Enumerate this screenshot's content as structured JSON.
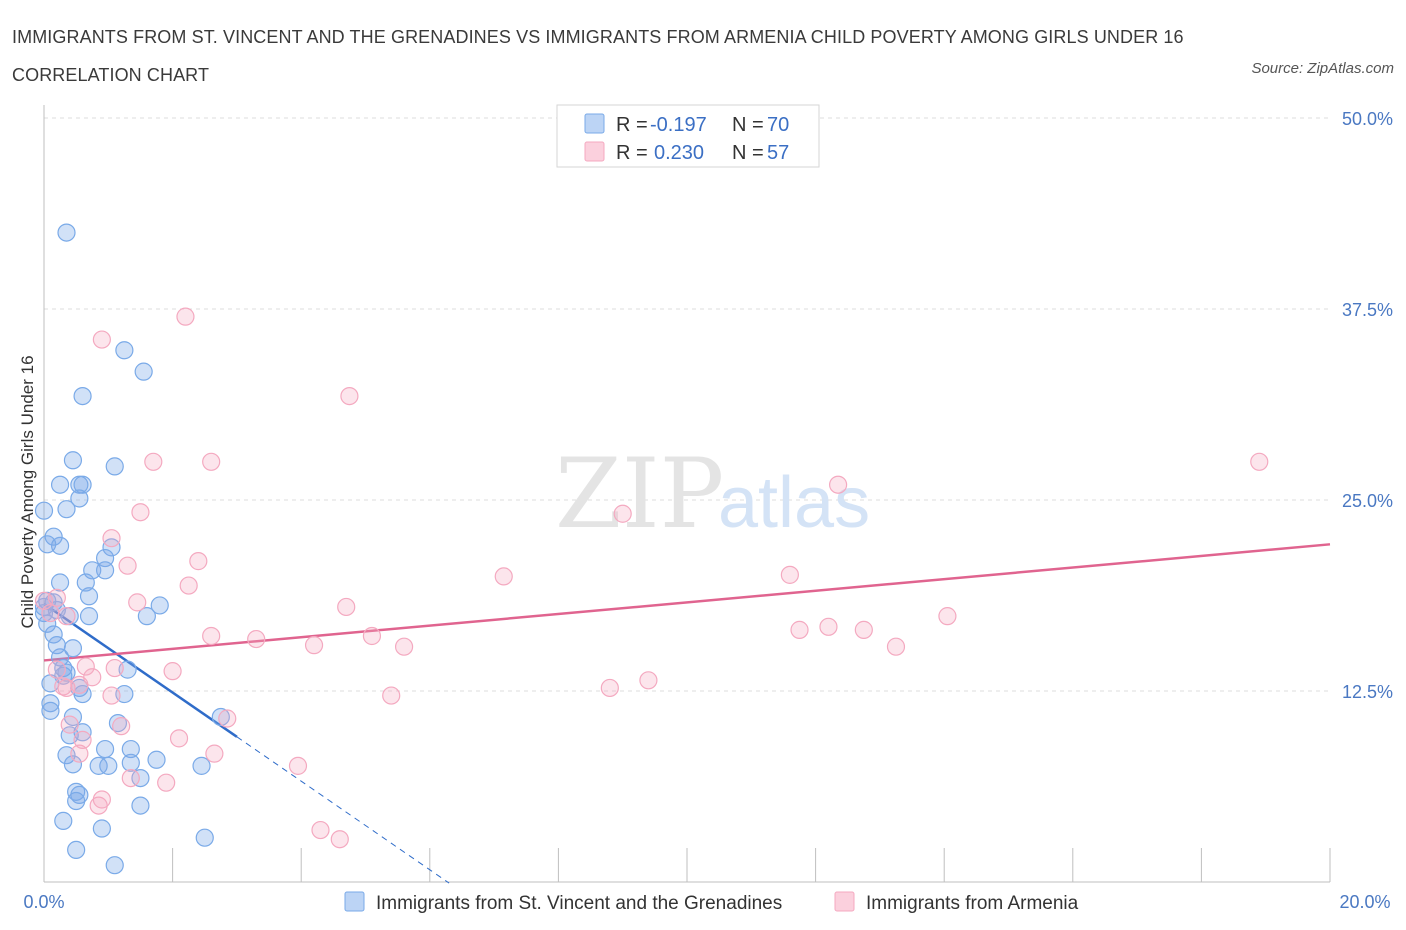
{
  "header": {
    "title": "IMMIGRANTS FROM ST. VINCENT AND THE GRENADINES VS IMMIGRANTS FROM ARMENIA CHILD POVERTY AMONG GIRLS UNDER 16 CORRELATION CHART",
    "source": "Source: ZipAtlas.com"
  },
  "watermark": {
    "zip": "ZIP",
    "atlas": "atlas"
  },
  "colors": {
    "blue": "#7aaae8",
    "blue_line": "#2f6cc9",
    "pink": "#f4a9c0",
    "pink_line": "#e0648f",
    "tick": "#4a78c2",
    "grid": "#dcdcdc"
  },
  "legend": {
    "r_label": "R =",
    "n_label": "N =",
    "rows": [
      {
        "series": "blue",
        "r": "-0.197",
        "n": "70"
      },
      {
        "series": "pink",
        "r": "0.230",
        "n": "57"
      }
    ]
  },
  "chart_data": {
    "type": "scatter",
    "title": "Immigrants from St. Vincent and the Grenadines vs Immigrants from Armenia Child Poverty Among Girls Under 16 Correlation Chart",
    "xlabel": "",
    "ylabel": "Child Poverty Among Girls Under 16",
    "xlim": [
      0,
      20
    ],
    "ylim": [
      0,
      50
    ],
    "x_tick_labels": {
      "min": "0.0%",
      "max": "20.0%"
    },
    "y_ticks": [
      {
        "value": 12.5,
        "label": "12.5%"
      },
      {
        "value": 25,
        "label": "25.0%"
      },
      {
        "value": 37.5,
        "label": "37.5%"
      },
      {
        "value": 50,
        "label": "50.0%"
      }
    ],
    "series": [
      {
        "name": "Immigrants from St. Vincent and the Grenadines",
        "color": "blue",
        "R": -0.197,
        "N": 70,
        "trend": {
          "x0": 0,
          "y0": 18.2,
          "x1": 3.0,
          "y1": 9.5,
          "dash_to_x": 6.3
        },
        "points": [
          [
            0.35,
            42.5
          ],
          [
            1.25,
            34.8
          ],
          [
            1.55,
            33.4
          ],
          [
            0.6,
            31.8
          ],
          [
            0.45,
            27.6
          ],
          [
            1.1,
            27.2
          ],
          [
            0.25,
            26.0
          ],
          [
            0.55,
            26.0
          ],
          [
            0.6,
            26.0
          ],
          [
            0.55,
            25.1
          ],
          [
            0.0,
            24.3
          ],
          [
            0.35,
            24.4
          ],
          [
            0.15,
            22.6
          ],
          [
            0.25,
            22.0
          ],
          [
            0.05,
            22.1
          ],
          [
            1.05,
            21.9
          ],
          [
            0.95,
            21.2
          ],
          [
            0.75,
            20.4
          ],
          [
            0.95,
            20.4
          ],
          [
            0.25,
            19.6
          ],
          [
            0.7,
            18.7
          ],
          [
            0.05,
            18.4
          ],
          [
            0.15,
            18.3
          ],
          [
            0.2,
            17.8
          ],
          [
            0.0,
            17.6
          ],
          [
            1.8,
            18.1
          ],
          [
            0.4,
            17.4
          ],
          [
            0.7,
            17.4
          ],
          [
            1.6,
            17.4
          ],
          [
            0.05,
            16.9
          ],
          [
            0.15,
            16.2
          ],
          [
            0.45,
            15.3
          ],
          [
            0.25,
            14.7
          ],
          [
            0.3,
            14.0
          ],
          [
            0.35,
            13.7
          ],
          [
            1.3,
            13.9
          ],
          [
            0.55,
            12.7
          ],
          [
            0.6,
            12.3
          ],
          [
            1.25,
            12.3
          ],
          [
            0.1,
            11.7
          ],
          [
            0.1,
            11.2
          ],
          [
            0.45,
            10.8
          ],
          [
            0.6,
            9.8
          ],
          [
            1.15,
            10.4
          ],
          [
            0.4,
            9.6
          ],
          [
            0.35,
            8.3
          ],
          [
            0.95,
            8.7
          ],
          [
            1.35,
            8.7
          ],
          [
            0.45,
            7.7
          ],
          [
            0.85,
            7.6
          ],
          [
            1.0,
            7.6
          ],
          [
            1.35,
            7.8
          ],
          [
            1.75,
            8.0
          ],
          [
            2.45,
            7.6
          ],
          [
            0.5,
            5.9
          ],
          [
            0.55,
            5.7
          ],
          [
            0.5,
            5.3
          ],
          [
            1.5,
            6.8
          ],
          [
            1.5,
            5.0
          ],
          [
            0.3,
            4.0
          ],
          [
            0.9,
            3.5
          ],
          [
            0.5,
            2.1
          ],
          [
            1.1,
            1.1
          ],
          [
            2.5,
            2.9
          ],
          [
            2.75,
            10.8
          ],
          [
            0.3,
            13.5
          ],
          [
            0.0,
            18.0
          ],
          [
            0.1,
            13.0
          ],
          [
            0.2,
            15.5
          ],
          [
            0.65,
            19.6
          ]
        ]
      },
      {
        "name": "Immigrants from Armenia",
        "color": "pink",
        "R": 0.23,
        "N": 57,
        "trend": {
          "x0": 0,
          "y0": 14.5,
          "x1": 20,
          "y1": 22.1
        },
        "points": [
          [
            2.2,
            37.0
          ],
          [
            0.9,
            35.5
          ],
          [
            4.75,
            31.8
          ],
          [
            1.7,
            27.5
          ],
          [
            2.6,
            27.5
          ],
          [
            18.9,
            27.5
          ],
          [
            12.35,
            26.0
          ],
          [
            1.5,
            24.2
          ],
          [
            9.0,
            24.1
          ],
          [
            1.05,
            22.5
          ],
          [
            2.4,
            21.0
          ],
          [
            1.3,
            20.7
          ],
          [
            7.15,
            20.0
          ],
          [
            11.6,
            20.1
          ],
          [
            2.25,
            19.4
          ],
          [
            0.0,
            18.4
          ],
          [
            0.2,
            18.6
          ],
          [
            1.45,
            18.3
          ],
          [
            4.7,
            18.0
          ],
          [
            0.1,
            17.6
          ],
          [
            0.35,
            17.4
          ],
          [
            14.05,
            17.4
          ],
          [
            11.75,
            16.5
          ],
          [
            12.2,
            16.7
          ],
          [
            12.75,
            16.5
          ],
          [
            2.6,
            16.1
          ],
          [
            5.1,
            16.1
          ],
          [
            3.3,
            15.9
          ],
          [
            4.2,
            15.5
          ],
          [
            5.6,
            15.4
          ],
          [
            13.25,
            15.4
          ],
          [
            0.65,
            14.1
          ],
          [
            1.1,
            14.0
          ],
          [
            0.2,
            13.9
          ],
          [
            2.0,
            13.8
          ],
          [
            0.75,
            13.4
          ],
          [
            0.55,
            12.9
          ],
          [
            0.35,
            12.7
          ],
          [
            0.3,
            12.8
          ],
          [
            1.05,
            12.2
          ],
          [
            5.4,
            12.2
          ],
          [
            8.8,
            12.7
          ],
          [
            9.4,
            13.2
          ],
          [
            0.4,
            10.3
          ],
          [
            1.2,
            10.2
          ],
          [
            2.85,
            10.7
          ],
          [
            0.6,
            9.3
          ],
          [
            2.1,
            9.4
          ],
          [
            0.55,
            8.4
          ],
          [
            2.65,
            8.4
          ],
          [
            3.95,
            7.6
          ],
          [
            1.35,
            6.8
          ],
          [
            1.9,
            6.5
          ],
          [
            0.9,
            5.4
          ],
          [
            0.85,
            5.0
          ],
          [
            4.3,
            3.4
          ],
          [
            4.6,
            2.8
          ]
        ]
      }
    ]
  },
  "bottom_legend": {
    "blue_label": "Immigrants from St. Vincent and the Grenadines",
    "pink_label": "Immigrants from Armenia"
  }
}
